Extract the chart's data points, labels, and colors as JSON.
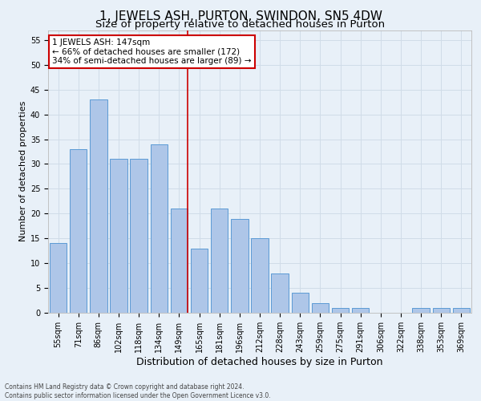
{
  "title": "1, JEWELS ASH, PURTON, SWINDON, SN5 4DW",
  "subtitle": "Size of property relative to detached houses in Purton",
  "xlabel": "Distribution of detached houses by size in Purton",
  "ylabel": "Number of detached properties",
  "bar_labels": [
    "55sqm",
    "71sqm",
    "86sqm",
    "102sqm",
    "118sqm",
    "134sqm",
    "149sqm",
    "165sqm",
    "181sqm",
    "196sqm",
    "212sqm",
    "228sqm",
    "243sqm",
    "259sqm",
    "275sqm",
    "291sqm",
    "306sqm",
    "322sqm",
    "338sqm",
    "353sqm",
    "369sqm"
  ],
  "bar_values": [
    14,
    33,
    43,
    31,
    31,
    34,
    21,
    13,
    21,
    19,
    15,
    8,
    4,
    2,
    1,
    1,
    0,
    0,
    1,
    1,
    1
  ],
  "bar_color": "#aec6e8",
  "bar_edge_color": "#5b9bd5",
  "grid_color": "#d0dce8",
  "background_color": "#e8f0f8",
  "vline_x_index": 6,
  "vline_color": "#cc0000",
  "annotation_text": "1 JEWELS ASH: 147sqm\n← 66% of detached houses are smaller (172)\n34% of semi-detached houses are larger (89) →",
  "annotation_box_color": "#ffffff",
  "annotation_box_edge": "#cc0000",
  "ylim": [
    0,
    57
  ],
  "yticks": [
    0,
    5,
    10,
    15,
    20,
    25,
    30,
    35,
    40,
    45,
    50,
    55
  ],
  "footer_line1": "Contains HM Land Registry data © Crown copyright and database right 2024.",
  "footer_line2": "Contains public sector information licensed under the Open Government Licence v3.0.",
  "title_fontsize": 11,
  "subtitle_fontsize": 9.5,
  "xlabel_fontsize": 9,
  "ylabel_fontsize": 8,
  "tick_fontsize": 7,
  "annotation_fontsize": 7.5,
  "footer_fontsize": 5.5
}
